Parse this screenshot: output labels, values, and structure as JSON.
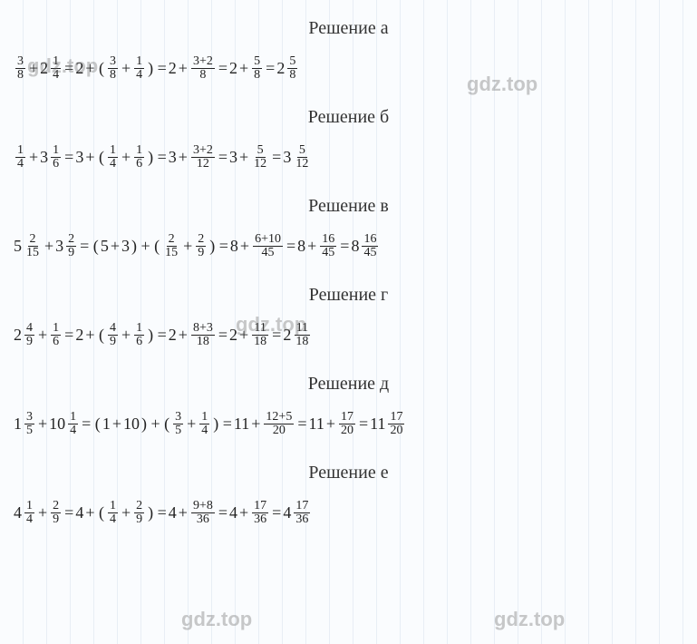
{
  "watermark": "gdz.top",
  "sections": [
    {
      "title": "Решение а",
      "eq": {
        "t1": {
          "n": "3",
          "d": "8"
        },
        "t2": {
          "w": "2",
          "n": "1",
          "d": "4"
        },
        "t3": "2",
        "t4": {
          "n": "3",
          "d": "8"
        },
        "t5": {
          "n": "1",
          "d": "4"
        },
        "t6": "2",
        "t7": {
          "n": "3+2",
          "d": "8"
        },
        "t8": "2",
        "t9": {
          "n": "5",
          "d": "8"
        },
        "t10": {
          "w": "2",
          "n": "5",
          "d": "8"
        }
      }
    },
    {
      "title": "Решение б",
      "eq": {
        "t1": {
          "n": "1",
          "d": "4"
        },
        "t2": {
          "w": "3",
          "n": "1",
          "d": "6"
        },
        "t3": "3",
        "t4": {
          "n": "1",
          "d": "4"
        },
        "t5": {
          "n": "1",
          "d": "6"
        },
        "t6": "3",
        "t7": {
          "n": "3+2",
          "d": "12"
        },
        "t8": "3",
        "t9": {
          "n": "5",
          "d": "12"
        },
        "t10": {
          "w": "3",
          "n": "5",
          "d": "12"
        }
      }
    },
    {
      "title": "Решение в",
      "eq": {
        "t1": {
          "w": "5",
          "n": "2",
          "d": "15"
        },
        "t2": {
          "w": "3",
          "n": "2",
          "d": "9"
        },
        "g1a": "5",
        "g1b": "3",
        "t4": {
          "n": "2",
          "d": "15"
        },
        "t5": {
          "n": "2",
          "d": "9"
        },
        "t6": "8",
        "t7": {
          "n": "6+10",
          "d": "45"
        },
        "t8": "8",
        "t9": {
          "n": "16",
          "d": "45"
        },
        "t10": {
          "w": "8",
          "n": "16",
          "d": "45"
        }
      }
    },
    {
      "title": "Решение г",
      "eq": {
        "t1": {
          "w": "2",
          "n": "4",
          "d": "9"
        },
        "t2": {
          "n": "1",
          "d": "6"
        },
        "t3": "2",
        "t4": {
          "n": "4",
          "d": "9"
        },
        "t5": {
          "n": "1",
          "d": "6"
        },
        "t6": "2",
        "t7": {
          "n": "8+3",
          "d": "18"
        },
        "t8": "2",
        "t9": {
          "n": "11",
          "d": "18"
        },
        "t10": {
          "w": "2",
          "n": "11",
          "d": "18"
        }
      }
    },
    {
      "title": "Решение д",
      "eq": {
        "t1": {
          "w": "1",
          "n": "3",
          "d": "5"
        },
        "t2": {
          "w": "10",
          "n": "1",
          "d": "4"
        },
        "g1a": "1",
        "g1b": "10",
        "t4": {
          "n": "3",
          "d": "5"
        },
        "t5": {
          "n": "1",
          "d": "4"
        },
        "t6": "11",
        "t7": {
          "n": "12+5",
          "d": "20"
        },
        "t8": "11",
        "t9": {
          "n": "17",
          "d": "20"
        },
        "t10": {
          "w": "11",
          "n": "17",
          "d": "20"
        }
      }
    },
    {
      "title": "Решение е",
      "eq": {
        "t1": {
          "w": "4",
          "n": "1",
          "d": "4"
        },
        "t2": {
          "n": "2",
          "d": "9"
        },
        "t3": "4",
        "t4": {
          "n": "1",
          "d": "4"
        },
        "t5": {
          "n": "2",
          "d": "9"
        },
        "t6": "4",
        "t7": {
          "n": "9+8",
          "d": "36"
        },
        "t8": "4",
        "t9": {
          "n": "17",
          "d": "36"
        },
        "t10": {
          "w": "4",
          "n": "17",
          "d": "36"
        }
      }
    }
  ]
}
